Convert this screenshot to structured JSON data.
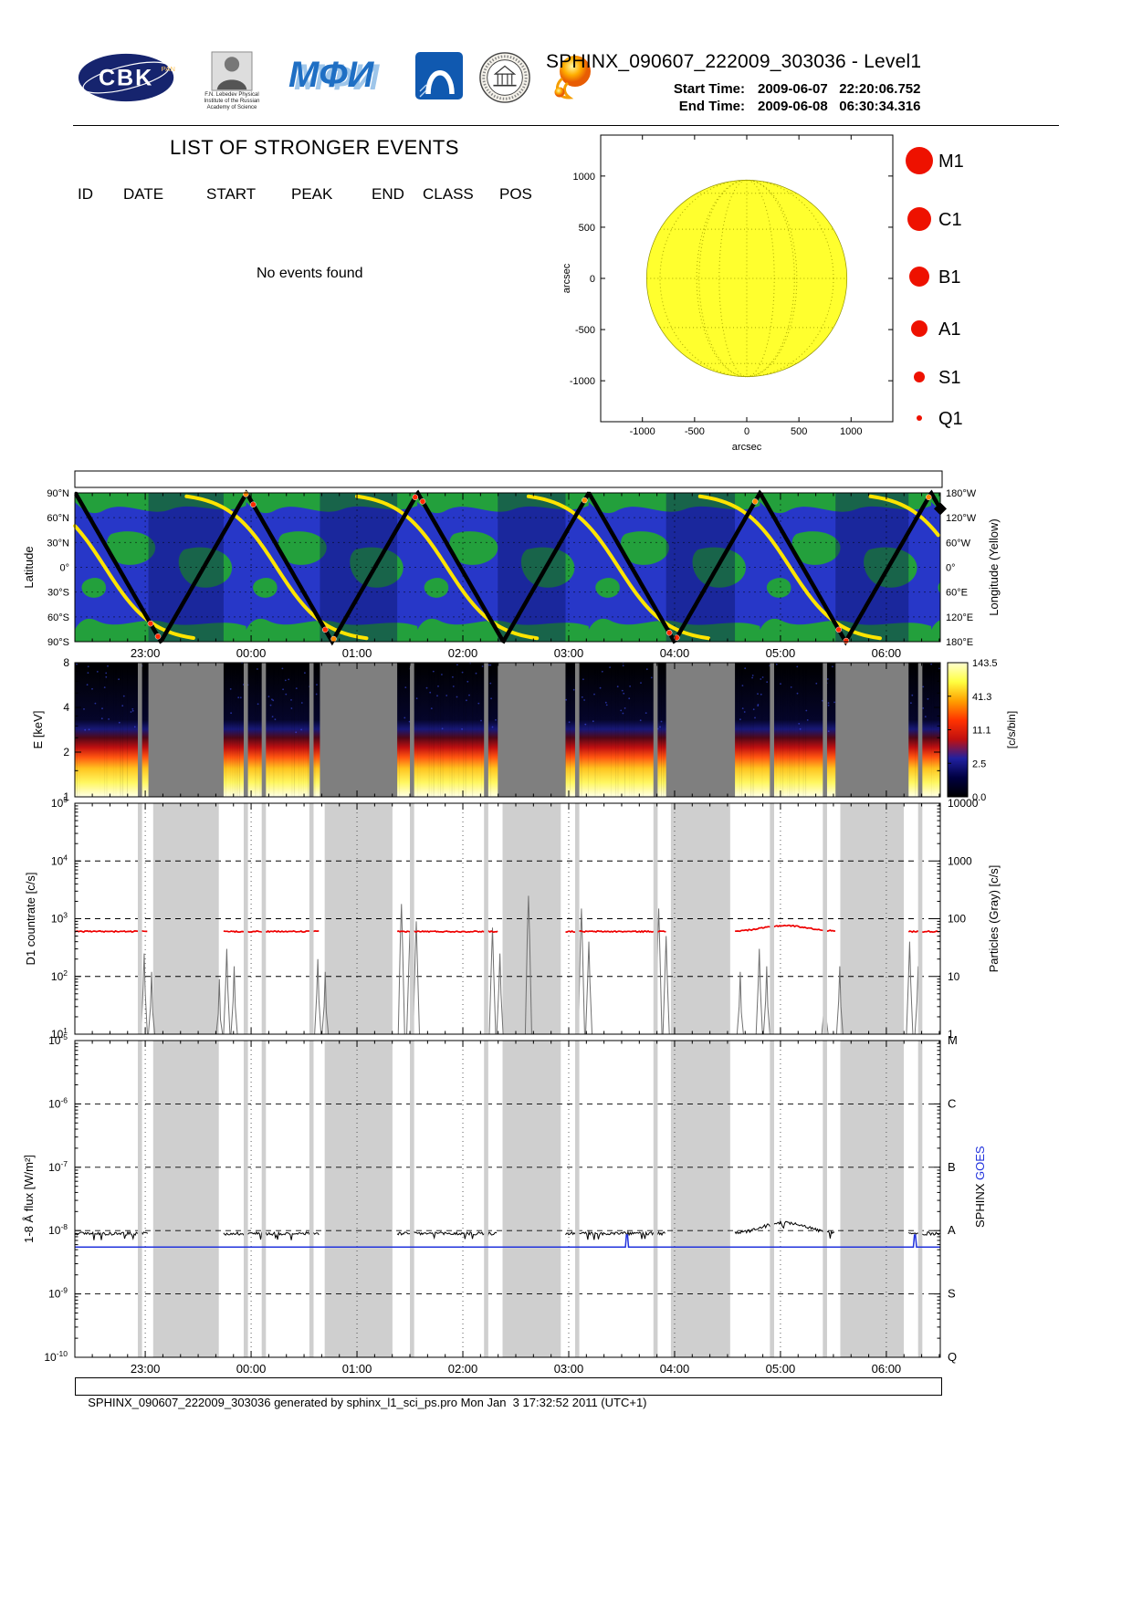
{
  "header": {
    "title": "SPHINX_090607_222009_303036 - Level1",
    "start_time": {
      "label": "Start Time:",
      "value": "2009-06-07   22:20:06.752"
    },
    "end_time": {
      "label": "End Time:",
      "value": "2009-06-08   06:30:34.316"
    },
    "logos": {
      "cbk": {
        "text": "CBK",
        "sub": "PAN"
      },
      "lebedev": {
        "caption1": "F.N. Lebedev Physical",
        "caption2": "Institute of the Russian",
        "caption3": "Academy of Science"
      },
      "mephi": {
        "text": "МФИ"
      }
    }
  },
  "events": {
    "heading": "LIST OF STRONGER EVENTS",
    "columns": [
      "ID",
      "DATE",
      "START",
      "PEAK",
      "END",
      "CLASS",
      "POS"
    ],
    "empty_message": "No events found"
  },
  "time_axis": {
    "start_hour": 22.3352,
    "end_hour": 30.5095,
    "tick_hours": [
      23,
      24,
      25,
      26,
      27,
      28,
      29,
      30
    ],
    "tick_labels": [
      "23:00",
      "00:00",
      "01:00",
      "02:00",
      "03:00",
      "04:00",
      "05:00",
      "06:00"
    ]
  },
  "data_segments_hours": [
    [
      22.3352,
      23.03
    ],
    [
      23.74,
      24.65
    ],
    [
      25.38,
      26.33
    ],
    [
      26.97,
      27.92
    ],
    [
      28.57,
      29.52
    ],
    [
      30.21,
      30.5095
    ]
  ],
  "gap_slivers_hours": [
    [
      22.93,
      22.97
    ],
    [
      23.93,
      23.97
    ],
    [
      24.1,
      24.14
    ],
    [
      24.55,
      24.59
    ],
    [
      25.5,
      25.54
    ],
    [
      26.2,
      26.24
    ],
    [
      27.06,
      27.1
    ],
    [
      27.8,
      27.84
    ],
    [
      28.9,
      28.94
    ],
    [
      29.4,
      29.44
    ],
    [
      30.3,
      30.34
    ]
  ],
  "chart_data": [
    {
      "type": "scatter",
      "name": "solar_disk_flare_map",
      "xlabel": "arcsec",
      "ylabel": "arcsec",
      "xlim": [
        -1400,
        1400
      ],
      "ylim": [
        -1400,
        1400
      ],
      "ticks": [
        -1000,
        -500,
        0,
        500,
        1000
      ],
      "disk_radius_arcsec": 960,
      "disk_color": "#FFFF2E",
      "points": [],
      "legend": {
        "color": "#EE1100",
        "items": [
          {
            "label": "M1",
            "radius_px": 15
          },
          {
            "label": "C1",
            "radius_px": 13
          },
          {
            "label": "B1",
            "radius_px": 11
          },
          {
            "label": "A1",
            "radius_px": 9
          },
          {
            "label": "S1",
            "radius_px": 6
          },
          {
            "label": "Q1",
            "radius_px": 3
          }
        ]
      }
    },
    {
      "type": "line",
      "name": "ground_track",
      "ylabel_left": "Latitude",
      "ylabel_right": "Longitude (Yellow)",
      "lat_tick_labels": [
        "90°N",
        "60°N",
        "30°N",
        "0°",
        "30°S",
        "60°S",
        "90°S"
      ],
      "lon_tick_labels": [
        "180°W",
        "120°W",
        "60°W",
        "0°",
        "60°E",
        "120°E",
        "180°E"
      ],
      "latitude_triangle_wave": {
        "first_peak_hour": 22.34,
        "period_hours": 1.6167,
        "amplitude_deg": 90
      },
      "longitude_curves": {
        "center_hours": [
          21.0,
          22.62,
          24.24,
          25.85,
          27.47,
          29.09,
          30.7
        ],
        "steepness": 2.2
      },
      "hot_dots_hours": [
        23.05,
        23.12,
        23.95,
        24.02,
        24.7,
        24.78,
        25.55,
        25.62,
        27.15,
        27.95,
        28.02,
        28.76,
        29.55,
        29.62,
        30.4
      ],
      "colors": {
        "ocean": "#2737C8",
        "land": "#23A03C",
        "eclipse_shade": "#0A1060",
        "track": "#000000",
        "longitude": "#FFE400",
        "dots": "#FF2A00"
      }
    },
    {
      "type": "heatmap",
      "name": "spectrogram",
      "ylabel": "E [keV]",
      "ylim_keV": [
        1,
        8
      ],
      "ytick_values": [
        1,
        2,
        4,
        8
      ],
      "no_data_color": "#7F7F7F",
      "profile_keV_stops": [
        [
          1.0,
          "#FFFFE8"
        ],
        [
          1.25,
          "#FFF760"
        ],
        [
          1.55,
          "#FFC520"
        ],
        [
          1.85,
          "#FF5510"
        ],
        [
          2.15,
          "#C01010"
        ],
        [
          2.5,
          "#500818"
        ],
        [
          2.85,
          "#181878"
        ],
        [
          3.3,
          "#05052A"
        ],
        [
          8.0,
          "#000000"
        ]
      ],
      "colorbar": {
        "label": "[c/s/bin]",
        "tick_labels": [
          "0.0",
          "2.5",
          "11.1",
          "41.3",
          "143.5"
        ],
        "stops": [
          "#000000",
          "#000040",
          "#2020A0",
          "#C01010",
          "#FF3300",
          "#FFA000",
          "#FFFF40",
          "#FFFFD0"
        ]
      }
    },
    {
      "type": "line",
      "name": "d1_countrate",
      "ylabel_left": "D1 countrate [c/s]",
      "ylabel_right": "Particles (Gray) [c/s]",
      "ylim_log": [
        10,
        100000
      ],
      "left_tick_exponents": [
        1,
        2,
        3,
        4,
        5
      ],
      "right_tick_labels": [
        "1",
        "10",
        "100",
        "1000",
        "10000"
      ],
      "countrate_base_c_s": 600,
      "countrate_bump": {
        "segment_index": 4,
        "peak_c_s": 760
      },
      "line_color": "#EE0000",
      "particles_color": "#707070",
      "band_color": "#CFCFCF",
      "particle_spikes": [
        [
          22.99,
          250
        ],
        [
          23.06,
          120
        ],
        [
          23.7,
          90
        ],
        [
          23.77,
          300
        ],
        [
          23.84,
          150
        ],
        [
          24.63,
          200
        ],
        [
          24.7,
          120
        ],
        [
          25.42,
          1800
        ],
        [
          25.5,
          600
        ],
        [
          25.56,
          900
        ],
        [
          26.28,
          700
        ],
        [
          26.35,
          250
        ],
        [
          26.62,
          2500
        ],
        [
          27.12,
          1500
        ],
        [
          27.19,
          400
        ],
        [
          27.85,
          1500
        ],
        [
          27.92,
          500
        ],
        [
          28.62,
          120
        ],
        [
          28.8,
          300
        ],
        [
          28.87,
          150
        ],
        [
          29.42,
          100
        ],
        [
          29.56,
          150
        ],
        [
          30.22,
          400
        ],
        [
          30.3,
          150
        ]
      ]
    },
    {
      "type": "line",
      "name": "flux_1_8A",
      "ylabel_left": "1-8 Å flux [W/m²]",
      "right_class_labels": [
        "M",
        "C",
        "B",
        "A",
        "S",
        "Q"
      ],
      "right_axis_caption": {
        "sphinx": "SPHINX ",
        "goes": "GOES"
      },
      "ylim_log": [
        1e-10,
        1e-05
      ],
      "left_tick_exponents": [
        -5,
        -6,
        -7,
        -8,
        -9,
        -10
      ],
      "sphinx_base_flux": 9e-09,
      "sphinx_bump": {
        "segment_index": 4,
        "peak_flux": 1.35e-08
      },
      "goes_flux": 5.5e-09,
      "goes_spike_hours": [
        27.55,
        30.27
      ],
      "colors": {
        "sphinx": "#000000",
        "goes": "#2233DD"
      },
      "band_color": "#CFCFCF"
    }
  ],
  "footer": {
    "text": "SPHINX_090607_222009_303036 generated by sphinx_l1_sci_ps.pro Mon Jan  3 17:32:52 2011 (UTC+1)"
  }
}
